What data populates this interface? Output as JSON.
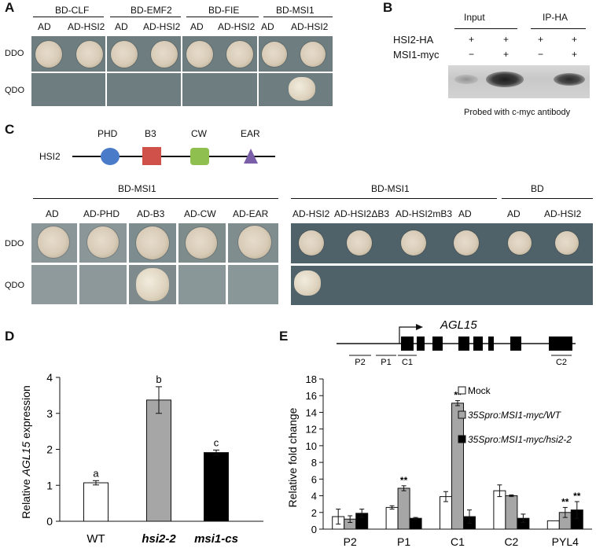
{
  "panels": {
    "A": "A",
    "B": "B",
    "C": "C",
    "D": "D",
    "E": "E"
  },
  "panelA": {
    "baits": [
      "BD-CLF",
      "BD-EMF2",
      "BD-FIE",
      "BD-MSI1"
    ],
    "lanes": [
      "AD",
      "AD-HSI2",
      "AD",
      "AD-HSI2",
      "AD",
      "AD-HSI2",
      "AD",
      "AD-HSI2"
    ],
    "rows": [
      "DDO",
      "QDO"
    ]
  },
  "panelB": {
    "groups": [
      "Input",
      "IP-HA"
    ],
    "row1_label": "HSI2-HA",
    "row2_label": "MSI1-myc",
    "row1_signs": [
      "+",
      "+",
      "+",
      "+"
    ],
    "row2_signs": [
      "−",
      "+",
      "−",
      "+"
    ],
    "caption": "Probed with c-myc antibody"
  },
  "panelC": {
    "protein": "HSI2",
    "domains": [
      "PHD",
      "B3",
      "CW",
      "EAR"
    ],
    "domain_colors": [
      "#4a7bc8",
      "#d0504a",
      "#8fc04f",
      "#7b5ea8"
    ],
    "group_left": "BD-MSI1",
    "group_mid": "BD-MSI1",
    "group_right": "BD",
    "lanes_left": [
      "AD",
      "AD-PHD",
      "AD-B3",
      "AD-CW",
      "AD-EAR"
    ],
    "lanes_right": [
      "AD-HSI2",
      "AD-HSI2ΔB3",
      "AD-HSI2mB3",
      "AD",
      "AD",
      "AD-HSI2"
    ],
    "rows": [
      "DDO",
      "QDO"
    ]
  },
  "panelD": {
    "chart_data": {
      "type": "bar",
      "categories": [
        "WT",
        "hsi2-2",
        "msi1-cs"
      ],
      "values": [
        1.07,
        3.37,
        1.91
      ],
      "errors": [
        0.06,
        0.37,
        0.07
      ],
      "letters": [
        "a",
        "b",
        "c"
      ],
      "colors": [
        "#ffffff",
        "#a6a6a6",
        "#000000"
      ],
      "ylabel_pre": "Relative ",
      "ylabel_italic": "AGL15",
      "ylabel_post": " expression",
      "ylim": [
        0,
        4
      ],
      "yticks": [
        "0",
        "1",
        "2",
        "3",
        "4"
      ]
    }
  },
  "panelE": {
    "gene": "AGL15",
    "regions": [
      "P2",
      "P1",
      "C1",
      "C2"
    ],
    "chart_data": {
      "type": "bar",
      "categories": [
        "P2",
        "P1",
        "C1",
        "C2",
        "PYL4"
      ],
      "series": [
        {
          "name": "Mock",
          "values": [
            1.5,
            2.6,
            3.9,
            4.6,
            1.0
          ],
          "errors": [
            0.9,
            0.2,
            0.6,
            0.7,
            0.0
          ],
          "color": "#ffffff"
        },
        {
          "name": "35Spro:MSI1-myc/WT",
          "values": [
            1.2,
            4.9,
            15.1,
            4.0,
            2.0
          ],
          "errors": [
            0.4,
            0.3,
            0.3,
            0.1,
            0.6
          ],
          "color": "#a6a6a6"
        },
        {
          "name": "35Spro:MSI1-myc/hsi2-2",
          "values": [
            1.9,
            1.3,
            1.5,
            1.3,
            2.3
          ],
          "errors": [
            0.5,
            0.1,
            0.8,
            0.5,
            1.0
          ],
          "color": "#000000"
        }
      ],
      "ylabel": "Relative fold change",
      "ylim": [
        0,
        18
      ],
      "yticks": [
        "0",
        "2",
        "4",
        "6",
        "8",
        "10",
        "12",
        "14",
        "16",
        "18"
      ],
      "significance": [
        {
          "category": "P1",
          "series": 1,
          "text": "**"
        },
        {
          "category": "C1",
          "series": 1,
          "text": "**"
        },
        {
          "category": "PYL4",
          "series": 1,
          "text": "**"
        },
        {
          "category": "PYL4",
          "series": 2,
          "text": "**"
        }
      ]
    }
  }
}
